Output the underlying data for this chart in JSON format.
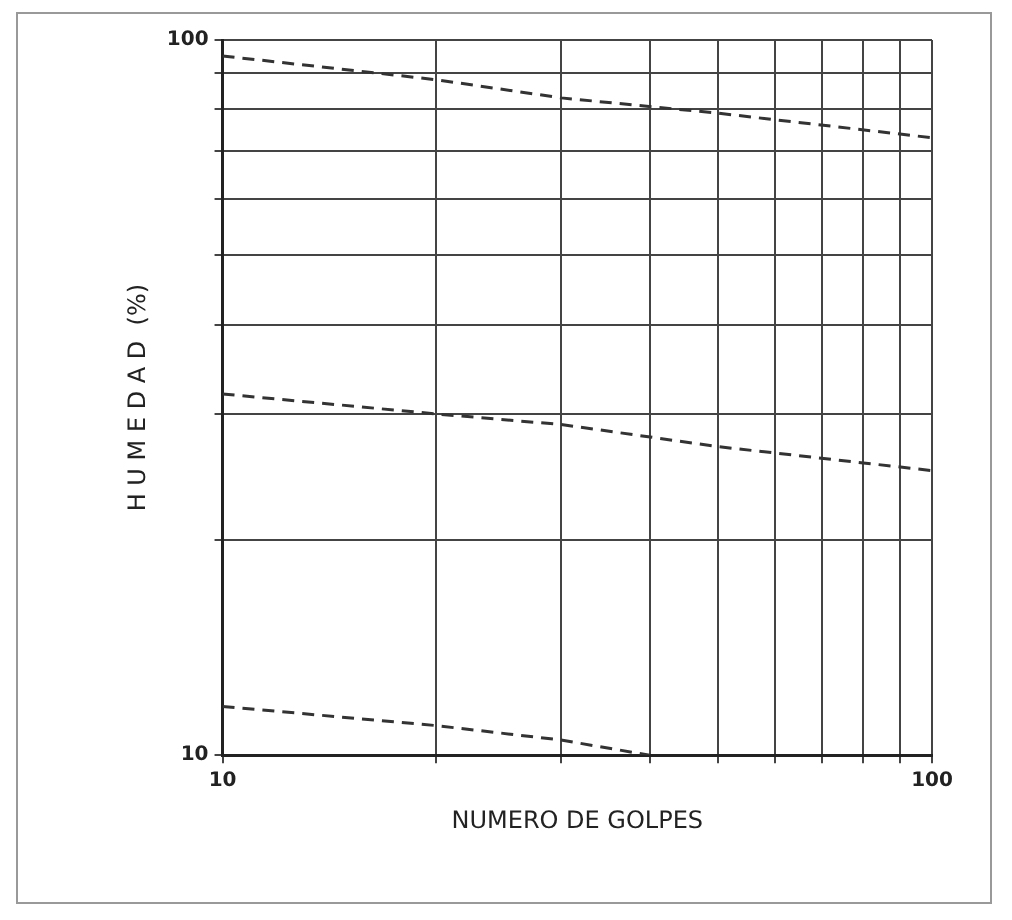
{
  "chart_data": {
    "type": "line",
    "xlabel": "NUMERO DE GOLPES",
    "ylabel": "H U M E D A D  (%)",
    "log": "xy",
    "grid": true,
    "legend": false,
    "marker": "none",
    "line_style": "dashed",
    "xlim": [
      10,
      100
    ],
    "ylim": [
      10,
      100
    ],
    "xticks": [
      10,
      {
        "value": 20,
        "label": null
      },
      {
        "value": 30,
        "label": null
      },
      {
        "value": 40,
        "label": null
      },
      {
        "value": 50,
        "label": null
      },
      {
        "value": 60,
        "label": null
      },
      {
        "value": 70,
        "label": null
      },
      {
        "value": 80,
        "label": null
      },
      {
        "value": 90,
        "label": null
      },
      100
    ],
    "yticks": [
      10,
      {
        "value": 20,
        "label": null
      },
      {
        "value": 30,
        "label": null
      },
      {
        "value": 40,
        "label": null
      },
      {
        "value": 50,
        "label": null
      },
      {
        "value": 60,
        "label": null
      },
      {
        "value": 70,
        "label": null
      },
      {
        "value": 80,
        "label": null
      },
      {
        "value": 90,
        "label": null
      },
      100
    ],
    "series": [
      {
        "color": "#333333",
        "x": [
          10,
          20,
          30,
          50,
          100
        ],
        "values": [
          95,
          88,
          83,
          79,
          73
        ]
      },
      {
        "color": "#333333",
        "x": [
          10,
          20,
          30,
          50,
          100
        ],
        "values": [
          32,
          30,
          29,
          27,
          25
        ]
      },
      {
        "color": "#333333",
        "x": [
          10,
          20,
          30,
          40
        ],
        "values": [
          11.7,
          11,
          10.5,
          10
        ]
      }
    ]
  }
}
